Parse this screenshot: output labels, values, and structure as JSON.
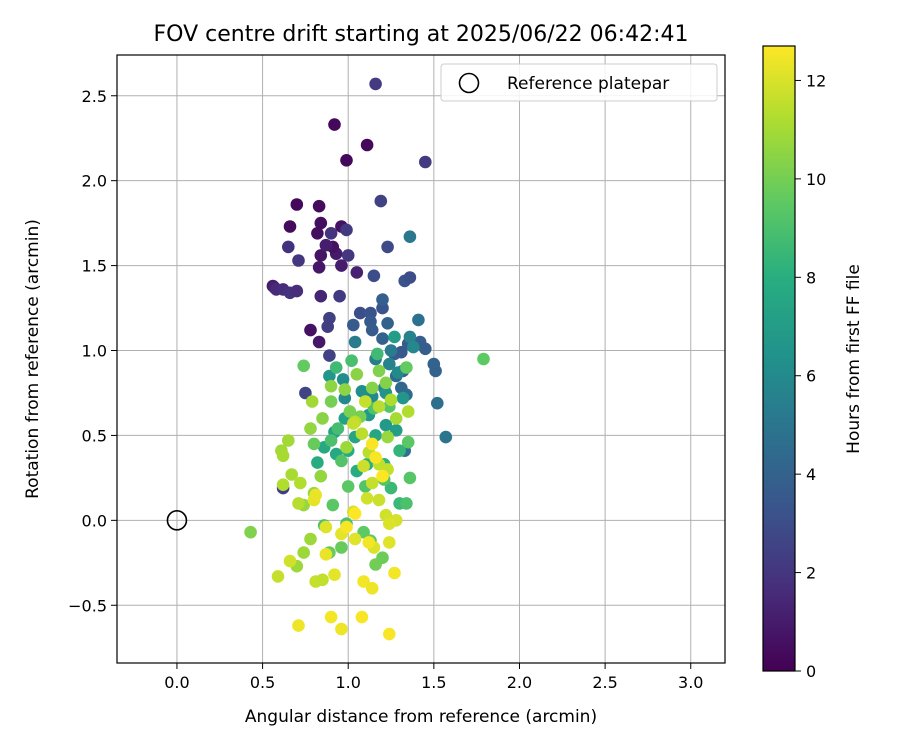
{
  "chart_data": {
    "type": "scatter",
    "title": "FOV centre drift starting at 2025/06/22 06:42:41",
    "xlabel": "Angular distance from reference (arcmin)",
    "ylabel": "Rotation from reference (arcmin)",
    "xlim": [
      -0.35,
      3.2
    ],
    "ylim": [
      -0.84,
      2.74
    ],
    "xticks": [
      0.0,
      0.5,
      1.0,
      1.5,
      2.0,
      2.5,
      3.0
    ],
    "xtick_labels": [
      "0.0",
      "0.5",
      "1.0",
      "1.5",
      "2.0",
      "2.5",
      "3.0"
    ],
    "yticks": [
      -0.5,
      0.0,
      0.5,
      1.0,
      1.5,
      2.0,
      2.5
    ],
    "ytick_labels": [
      "−0.5",
      "0.0",
      "0.5",
      "1.0",
      "1.5",
      "2.0",
      "2.5"
    ],
    "grid": true,
    "legend": {
      "placement": "top-right",
      "entries": [
        "Reference platepar"
      ]
    },
    "reference_point": {
      "x": 0.0,
      "y": 0.0
    },
    "colorbar": {
      "label": "Hours from first FF file",
      "min": 0,
      "max": 12.7,
      "colormap": "viridis",
      "ticks": [
        0,
        2,
        4,
        6,
        8,
        10,
        12
      ],
      "tick_labels": [
        "0",
        "2",
        "4",
        "6",
        "8",
        "10",
        "12"
      ]
    },
    "points": [
      [
        0.7,
        1.86,
        0.3
      ],
      [
        0.92,
        2.33,
        0.3
      ],
      [
        0.99,
        2.12,
        0.3
      ],
      [
        1.11,
        2.21,
        0.3
      ],
      [
        0.83,
        1.85,
        0.4
      ],
      [
        0.66,
        1.73,
        0.4
      ],
      [
        0.84,
        1.75,
        0.5
      ],
      [
        0.96,
        1.73,
        0.6
      ],
      [
        0.82,
        1.69,
        0.5
      ],
      [
        0.78,
        1.12,
        0.6
      ],
      [
        0.83,
        1.05,
        0.8
      ],
      [
        0.84,
        1.56,
        0.7
      ],
      [
        0.93,
        1.57,
        0.9
      ],
      [
        0.91,
        1.61,
        0.6
      ],
      [
        0.83,
        1.49,
        0.8
      ],
      [
        0.96,
        1.5,
        1.0
      ],
      [
        0.87,
        1.62,
        1.0
      ],
      [
        1.05,
        1.46,
        1.2
      ],
      [
        0.84,
        1.32,
        1.3
      ],
      [
        0.56,
        1.38,
        1.0
      ],
      [
        0.57,
        1.37,
        1.2
      ],
      [
        0.58,
        1.36,
        1.5
      ],
      [
        0.62,
        1.36,
        1.6
      ],
      [
        0.66,
        1.34,
        1.8
      ],
      [
        0.7,
        1.35,
        1.6
      ],
      [
        0.65,
        1.61,
        1.8
      ],
      [
        0.71,
        1.53,
        2.0
      ],
      [
        0.9,
        1.69,
        1.9
      ],
      [
        0.99,
        1.71,
        2.1
      ],
      [
        1.0,
        1.56,
        2.0
      ],
      [
        0.95,
        1.32,
        2.2
      ],
      [
        0.89,
        1.19,
        2.4
      ],
      [
        0.88,
        1.14,
        2.3
      ],
      [
        0.89,
        0.97,
        2.5
      ],
      [
        0.75,
        0.75,
        2.6
      ],
      [
        0.62,
        0.19,
        2.3
      ],
      [
        1.16,
        2.57,
        2.2
      ],
      [
        1.45,
        2.11,
        2.2
      ],
      [
        1.19,
        1.88,
        2.5
      ],
      [
        1.23,
        1.61,
        2.8
      ],
      [
        1.15,
        1.44,
        3.0
      ],
      [
        1.33,
        1.41,
        3.2
      ],
      [
        1.36,
        1.43,
        3.0
      ],
      [
        1.07,
        1.22,
        3.0
      ],
      [
        1.13,
        1.22,
        3.2
      ],
      [
        1.2,
        1.25,
        3.3
      ],
      [
        1.13,
        1.17,
        3.5
      ],
      [
        1.14,
        1.12,
        3.6
      ],
      [
        1.03,
        1.15,
        3.6
      ],
      [
        1.2,
        1.3,
        3.8
      ],
      [
        1.23,
        1.16,
        3.9
      ],
      [
        1.2,
        1.07,
        4.0
      ],
      [
        1.27,
        0.98,
        3.7
      ],
      [
        1.31,
        0.99,
        3.5
      ],
      [
        1.35,
        1.04,
        3.6
      ],
      [
        1.42,
        1.05,
        3.8
      ],
      [
        1.45,
        1.01,
        3.7
      ],
      [
        1.5,
        0.92,
        4.0
      ],
      [
        1.51,
        0.88,
        4.0
      ],
      [
        1.32,
        0.88,
        4.1
      ],
      [
        1.28,
        0.85,
        4.3
      ],
      [
        1.34,
        0.74,
        4.4
      ],
      [
        1.31,
        0.78,
        4.2
      ],
      [
        1.52,
        0.69,
        4.6
      ],
      [
        1.57,
        0.49,
        4.9
      ],
      [
        1.33,
        0.41,
        4.7
      ],
      [
        1.41,
        1.18,
        4.7
      ],
      [
        1.36,
        1.67,
        5.0
      ],
      [
        1.25,
        1.0,
        5.2
      ],
      [
        1.16,
        0.95,
        5.3
      ],
      [
        1.04,
        1.05,
        5.3
      ],
      [
        1.24,
        0.92,
        5.6
      ],
      [
        1.36,
        1.08,
        5.6
      ],
      [
        1.38,
        1.02,
        5.9
      ],
      [
        1.29,
        0.87,
        6.0
      ],
      [
        1.21,
        0.78,
        5.8
      ],
      [
        1.14,
        0.73,
        6.0
      ],
      [
        0.98,
        0.72,
        6.0
      ],
      [
        0.97,
        0.83,
        6.2
      ],
      [
        1.08,
        0.76,
        6.3
      ],
      [
        1.22,
        0.75,
        6.5
      ],
      [
        1.32,
        0.72,
        6.6
      ],
      [
        0.89,
        0.85,
        6.6
      ],
      [
        1.12,
        0.62,
        6.8
      ],
      [
        1.22,
        0.56,
        6.8
      ],
      [
        1.28,
        0.53,
        7.0
      ],
      [
        1.27,
        1.08,
        7.0
      ],
      [
        0.98,
        0.6,
        7.2
      ],
      [
        0.92,
        0.52,
        7.3
      ],
      [
        1.04,
        0.49,
        7.4
      ],
      [
        1.16,
        0.5,
        7.5
      ],
      [
        0.86,
        0.43,
        7.6
      ],
      [
        0.82,
        0.34,
        7.8
      ],
      [
        0.93,
        0.39,
        7.6
      ],
      [
        1.0,
        0.41,
        7.8
      ],
      [
        1.11,
        0.33,
        8.0
      ],
      [
        1.05,
        0.29,
        7.9
      ],
      [
        1.21,
        0.33,
        8.2
      ],
      [
        1.3,
        0.41,
        8.3
      ],
      [
        1.25,
        0.19,
        8.5
      ],
      [
        1.3,
        0.1,
        8.5
      ],
      [
        1.34,
        0.1,
        9.0
      ],
      [
        1.17,
        0.98,
        8.6
      ],
      [
        0.93,
        0.9,
        8.6
      ],
      [
        1.02,
        0.94,
        8.9
      ],
      [
        0.94,
        0.54,
        8.8
      ],
      [
        0.9,
        0.47,
        9.0
      ],
      [
        0.96,
        0.35,
        9.2
      ],
      [
        1.15,
        0.66,
        9.1
      ],
      [
        1.24,
        0.67,
        9.3
      ],
      [
        1.35,
        0.46,
        9.4
      ],
      [
        1.36,
        0.25,
        9.3
      ],
      [
        1.21,
        0.24,
        9.2
      ],
      [
        1.1,
        0.2,
        9.2
      ],
      [
        1.0,
        0.2,
        9.4
      ],
      [
        0.91,
        0.09,
        9.4
      ],
      [
        0.86,
        -0.03,
        9.0
      ],
      [
        0.99,
        -0.02,
        9.0
      ],
      [
        1.09,
        -0.07,
        9.5
      ],
      [
        1.13,
        -0.12,
        9.6
      ],
      [
        0.96,
        -0.16,
        9.7
      ],
      [
        0.89,
        -0.19,
        9.7
      ],
      [
        1.2,
        -0.22,
        9.8
      ],
      [
        1.16,
        -0.26,
        9.9
      ],
      [
        1.79,
        0.95,
        9.5
      ],
      [
        1.34,
        0.9,
        9.6
      ],
      [
        0.74,
        0.91,
        9.6
      ],
      [
        0.8,
        0.45,
        9.7
      ],
      [
        0.9,
        0.7,
        10.0
      ],
      [
        1.01,
        0.64,
        10.1
      ],
      [
        1.07,
        0.61,
        10.0
      ],
      [
        1.18,
        0.88,
        10.2
      ],
      [
        1.22,
        0.81,
        10.3
      ],
      [
        1.14,
        0.78,
        10.3
      ],
      [
        1.05,
        0.86,
        10.4
      ],
      [
        0.98,
        0.77,
        10.5
      ],
      [
        0.9,
        0.79,
        10.5
      ],
      [
        0.85,
        0.6,
        10.4
      ],
      [
        0.78,
        0.54,
        10.6
      ],
      [
        0.84,
        0.26,
        10.6
      ],
      [
        0.8,
        0.16,
        10.7
      ],
      [
        0.74,
        0.09,
        10.7
      ],
      [
        0.78,
        -0.11,
        10.8
      ],
      [
        0.74,
        -0.19,
        10.8
      ],
      [
        0.7,
        -0.27,
        10.8
      ],
      [
        0.65,
        0.47,
        10.9
      ],
      [
        0.61,
        0.41,
        10.9
      ],
      [
        0.62,
        0.38,
        11.0
      ],
      [
        0.67,
        0.27,
        11.0
      ],
      [
        0.62,
        0.21,
        11.2
      ],
      [
        0.72,
        0.22,
        11.2
      ],
      [
        0.71,
        0.1,
        11.3
      ],
      [
        1.04,
        0.58,
        11.3
      ],
      [
        1.08,
        0.51,
        11.4
      ],
      [
        1.12,
        0.4,
        11.4
      ],
      [
        1.18,
        0.33,
        11.5
      ],
      [
        1.23,
        0.3,
        11.5
      ],
      [
        1.14,
        0.22,
        11.6
      ],
      [
        1.28,
        0.6,
        11.0
      ],
      [
        1.35,
        0.64,
        11.2
      ],
      [
        1.25,
        0.71,
        11.1
      ],
      [
        1.18,
        0.67,
        11.3
      ],
      [
        1.1,
        0.7,
        11.6
      ],
      [
        1.03,
        0.57,
        11.6
      ],
      [
        1.09,
        0.32,
        11.7
      ],
      [
        1.18,
        0.12,
        11.7
      ],
      [
        1.11,
        0.13,
        11.8
      ],
      [
        1.03,
        0.05,
        11.9
      ],
      [
        1.22,
        0.03,
        11.8
      ],
      [
        1.28,
        0.0,
        11.9
      ],
      [
        1.24,
        -0.02,
        12.0
      ],
      [
        1.24,
        -0.13,
        12.1
      ],
      [
        1.15,
        -0.16,
        12.0
      ],
      [
        1.04,
        -0.11,
        12.1
      ],
      [
        0.96,
        -0.08,
        12.2
      ],
      [
        0.87,
        -0.04,
        12.1
      ],
      [
        0.8,
        0.12,
        12.2
      ],
      [
        0.81,
        0.15,
        12.3
      ],
      [
        0.87,
        -0.2,
        12.3
      ],
      [
        0.92,
        -0.32,
        12.2
      ],
      [
        0.81,
        -0.36,
        11.6
      ],
      [
        0.85,
        -0.35,
        11.5
      ],
      [
        0.59,
        -0.33,
        11.6
      ],
      [
        0.66,
        -0.24,
        11.8
      ],
      [
        0.71,
        -0.62,
        12.4
      ],
      [
        0.9,
        -0.57,
        12.5
      ],
      [
        0.96,
        -0.64,
        12.4
      ],
      [
        1.08,
        -0.57,
        12.6
      ],
      [
        1.24,
        -0.67,
        12.6
      ],
      [
        1.09,
        -0.36,
        12.5
      ],
      [
        1.14,
        -0.4,
        12.4
      ],
      [
        1.27,
        -0.31,
        12.5
      ],
      [
        1.12,
        -0.13,
        12.5
      ],
      [
        1.14,
        0.45,
        12.6
      ],
      [
        1.16,
        0.37,
        12.6
      ],
      [
        1.2,
        0.26,
        12.7
      ],
      [
        1.04,
        0.04,
        12.7
      ],
      [
        0.99,
        -0.04,
        12.6
      ],
      [
        0.43,
        -0.07,
        10.2
      ],
      [
        0.79,
        0.7,
        10.9
      ],
      [
        0.99,
        0.43,
        10.8
      ],
      [
        1.23,
        0.49,
        10.7
      ]
    ]
  }
}
